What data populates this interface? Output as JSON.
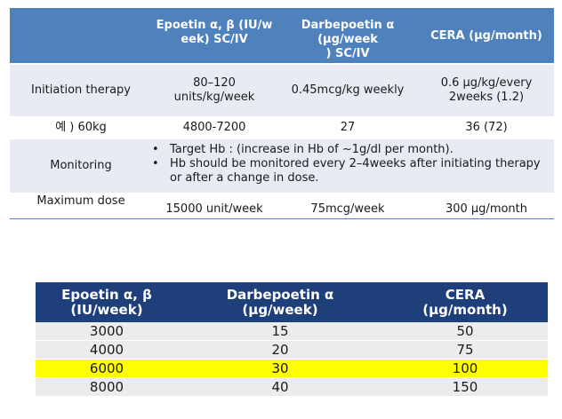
{
  "table1": {
    "headers": [
      "",
      "Epoetin  α, β (IU/week) SC/IV",
      "Darbepoetin α (μg/week) SC/IV",
      "CERA (μg/month)"
    ],
    "header_lines": {
      "epoetin": [
        "Epoetin  α, β (IU/w",
        "eek) SC/IV"
      ],
      "darbepoetin": [
        "Darbepoetin α (μg/week",
        ") SC/IV"
      ],
      "cera": [
        "CERA (μg/month)"
      ]
    },
    "rows": {
      "initiation": {
        "label": "Initiation therapy",
        "epoetin": [
          "80–120",
          "units/kg/week"
        ],
        "darbepoetin": "0.45mcg/kg weekly",
        "cera": [
          "0.6 μg/kg/every",
          "2weeks (1.2)"
        ]
      },
      "example": {
        "label": "예 ) 60kg",
        "epoetin": "4800-7200",
        "darbepoetin": "27",
        "cera": "36 (72)"
      },
      "monitoring": {
        "label": "Monitoring",
        "bullet_char": "•",
        "bullets": [
          "Target Hb : (increase in Hb of ~1g/dl per month).",
          "Hb should be monitored every 2–4weeks after initiating therapy or after a change in dose."
        ]
      },
      "maximum": {
        "label": "Maximum dose",
        "epoetin": "15000 unit/week",
        "darbepoetin": "75mcg/week",
        "cera": "300 μg/month"
      }
    },
    "colors": {
      "header_bg": "#4f81bd",
      "band_bg": "#e8ebf3",
      "header_text": "#ffffff"
    }
  },
  "table2": {
    "headers": [
      [
        "Epoetin  α, β",
        "(IU/week)"
      ],
      [
        "Darbepoetin α",
        "(μg/week)"
      ],
      [
        "CERA",
        "(μg/month)"
      ]
    ],
    "rows": [
      {
        "cells": [
          "3000",
          "15",
          "50"
        ],
        "highlight": false
      },
      {
        "cells": [
          "4000",
          "20",
          "75"
        ],
        "highlight": false
      },
      {
        "cells": [
          "6000",
          "30",
          "100"
        ],
        "highlight": true
      },
      {
        "cells": [
          "8000",
          "40",
          "150"
        ],
        "highlight": false
      }
    ],
    "colors": {
      "header_bg": "#1f3f7a",
      "row_bg": "#ececec",
      "highlight_bg": "#ffff00",
      "header_text": "#ffffff"
    }
  }
}
